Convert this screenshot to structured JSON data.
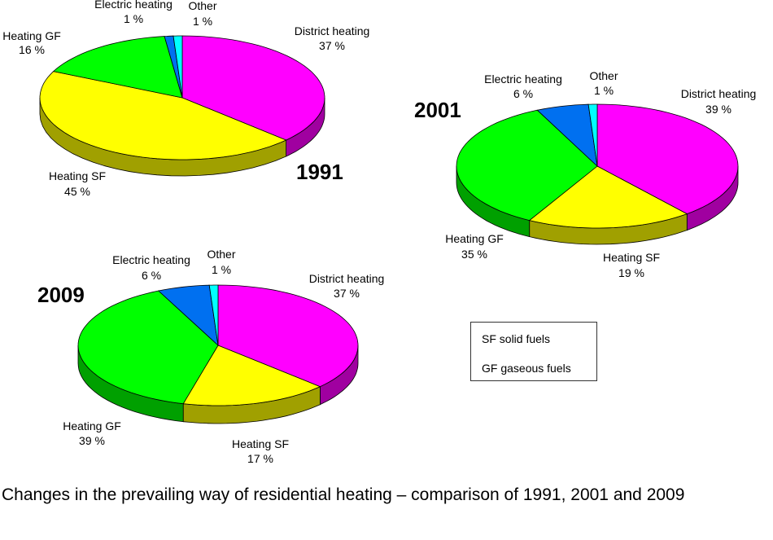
{
  "chart_data": [
    {
      "type": "pie",
      "title": "1991",
      "slices": [
        {
          "label": "District heating",
          "value": 37,
          "value_text": "37 %",
          "color": "#ff00ff"
        },
        {
          "label": "Heating SF",
          "value": 45,
          "value_text": "45 %",
          "color": "#ffff00"
        },
        {
          "label": "Heating GF",
          "value": 16,
          "value_text": "16 %",
          "color": "#00ff00"
        },
        {
          "label": "Electric heating",
          "value": 1,
          "value_text": "1 %",
          "color": "#0070f0"
        },
        {
          "label": "Other",
          "value": 1,
          "value_text": "1 %",
          "color": "#00ffff"
        }
      ]
    },
    {
      "type": "pie",
      "title": "2001",
      "slices": [
        {
          "label": "District heating",
          "value": 39,
          "value_text": "39 %",
          "color": "#ff00ff"
        },
        {
          "label": "Heating SF",
          "value": 19,
          "value_text": "19 %",
          "color": "#ffff00"
        },
        {
          "label": "Heating GF",
          "value": 35,
          "value_text": "35 %",
          "color": "#00ff00"
        },
        {
          "label": "Electric heating",
          "value": 6,
          "value_text": "6 %",
          "color": "#0070f0"
        },
        {
          "label": "Other",
          "value": 1,
          "value_text": "1 %",
          "color": "#00ffff"
        }
      ]
    },
    {
      "type": "pie",
      "title": "2009",
      "slices": [
        {
          "label": "District heating",
          "value": 37,
          "value_text": "37 %",
          "color": "#ff00ff"
        },
        {
          "label": "Heating SF",
          "value": 17,
          "value_text": "17 %",
          "color": "#ffff00"
        },
        {
          "label": "Heating GF",
          "value": 39,
          "value_text": "39 %",
          "color": "#00ff00"
        },
        {
          "label": "Electric heating",
          "value": 6,
          "value_text": "6 %",
          "color": "#0070f0"
        },
        {
          "label": "Other",
          "value": 1,
          "value_text": "1 %",
          "color": "#00ffff"
        }
      ]
    }
  ],
  "legend": {
    "line1": "SF  solid fuels",
    "line2": "GF  gaseous fuels"
  },
  "caption": "Changes in the prevailing way of residential heating – comparison of 1991, 2001 and 2009"
}
